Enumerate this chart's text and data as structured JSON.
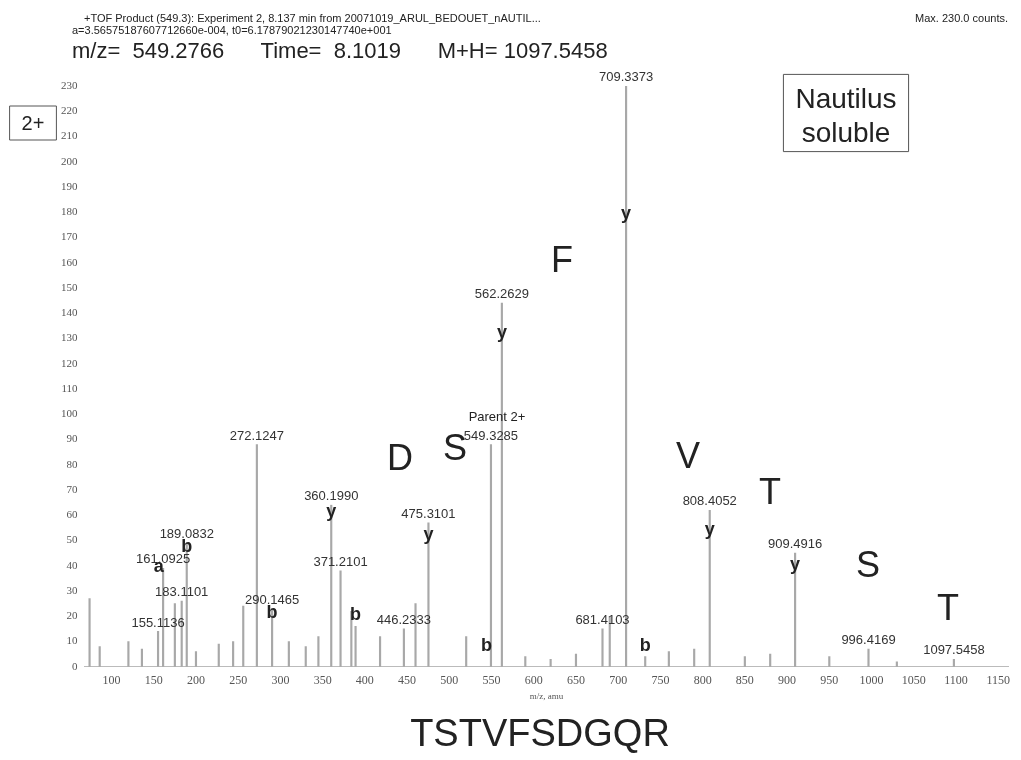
{
  "chart_data": {
    "type": "bar",
    "title": "+TOF Product (549.3): Experiment 2, 8.137 min from 20071019_ARUL_BEDOUET_nAUTIL...",
    "subtitle": "a=3.56575187607712660e-004, t0=6.17879021230147740e+001",
    "xlabel": "m/z, amu",
    "x": [
      74,
      86,
      120,
      136,
      155.11,
      161.09,
      175,
      183.11,
      189.08,
      200,
      227,
      244,
      256,
      272.12,
      290.15,
      310,
      330,
      345,
      360.2,
      371.21,
      384,
      389,
      418,
      446.23,
      460,
      475.31,
      520,
      549.33,
      562.26,
      590,
      620,
      650,
      681.41,
      690,
      709.34,
      732,
      760,
      790,
      808.41,
      850,
      880,
      909.49,
      950,
      996.42,
      1030,
      1097.55
    ],
    "values": [
      27,
      8,
      10,
      7,
      14,
      39,
      25,
      26,
      49,
      6,
      9,
      10,
      24,
      88,
      23,
      10,
      8,
      12,
      64,
      38,
      22,
      16,
      12,
      15,
      25,
      57,
      12,
      88,
      144,
      4,
      3,
      5,
      15,
      20,
      230,
      4,
      6,
      7,
      62,
      4,
      5,
      45,
      4,
      7,
      2,
      3
    ],
    "color": "#a8a8a8",
    "xlim": [
      68,
      1162
    ],
    "xticks": [
      100,
      150,
      200,
      250,
      300,
      350,
      400,
      450,
      500,
      550,
      600,
      650,
      700,
      750,
      800,
      850,
      900,
      950,
      1000,
      1050,
      1100,
      1150
    ],
    "ylim": [
      0,
      230
    ],
    "yticks": [
      0,
      10,
      20,
      30,
      40,
      50,
      60,
      70,
      80,
      90,
      100,
      110,
      120,
      130,
      140,
      150,
      160,
      170,
      180,
      190,
      200,
      210,
      220,
      230
    ],
    "grid": false,
    "legend": false,
    "annotations": [
      "Max. 230.0 counts.",
      "m/z=  549.2766      Time=  8.1019      M+H= 1097.5458",
      "2+",
      "Nautilus soluble",
      "TSTVFSDGQR",
      "Parent 2+",
      "D",
      "S",
      "F",
      "V",
      "T",
      "S",
      "T",
      {
        "text": "709.3373",
        "x": 709.34,
        "y": 230
      },
      {
        "text": "562.2629",
        "x": 562.26,
        "y": 144
      },
      {
        "text": "549.3285",
        "x": 549.33,
        "y": 88
      },
      {
        "text": "272.1247",
        "x": 272.12,
        "y": 88
      },
      {
        "text": "360.1990",
        "x": 360.2,
        "y": 64
      },
      {
        "text": "475.3101",
        "x": 475.31,
        "y": 57
      },
      {
        "text": "371.2101",
        "x": 371.21,
        "y": 38
      },
      {
        "text": "189.0832",
        "x": 189.08,
        "y": 49
      },
      {
        "text": "161.0925",
        "x": 161.09,
        "y": 39
      },
      {
        "text": "183.1101",
        "x": 183.11,
        "y": 26
      },
      {
        "text": "155.1136",
        "x": 155.11,
        "y": 14
      },
      {
        "text": "290.1465",
        "x": 290.15,
        "y": 23
      },
      {
        "text": "446.2333",
        "x": 446.23,
        "y": 15
      },
      {
        "text": "681.4103",
        "x": 681.41,
        "y": 15
      },
      {
        "text": "808.4052",
        "x": 808.41,
        "y": 62
      },
      {
        "text": "909.4916",
        "x": 909.49,
        "y": 45
      },
      {
        "text": "996.4169",
        "x": 996.42,
        "y": 7
      },
      {
        "text": "1097.5458",
        "x": 1097.55,
        "y": 3
      },
      {
        "text": "y",
        "x": 360.2,
        "y": 57
      },
      {
        "text": "y",
        "x": 475.31,
        "y": 48
      },
      {
        "text": "y",
        "x": 562.26,
        "y": 128
      },
      {
        "text": "y",
        "x": 709.34,
        "y": 175
      },
      {
        "text": "y",
        "x": 808.41,
        "y": 50
      },
      {
        "text": "y",
        "x": 909.49,
        "y": 36
      },
      {
        "text": "b",
        "x": 189,
        "y": 43
      },
      {
        "text": "a",
        "x": 156,
        "y": 35
      },
      {
        "text": "b",
        "x": 290,
        "y": 17
      },
      {
        "text": "b",
        "x": 544,
        "y": 4
      },
      {
        "text": "b",
        "x": 389,
        "y": 16
      },
      {
        "text": "b",
        "x": 732,
        "y": 4
      }
    ]
  }
}
